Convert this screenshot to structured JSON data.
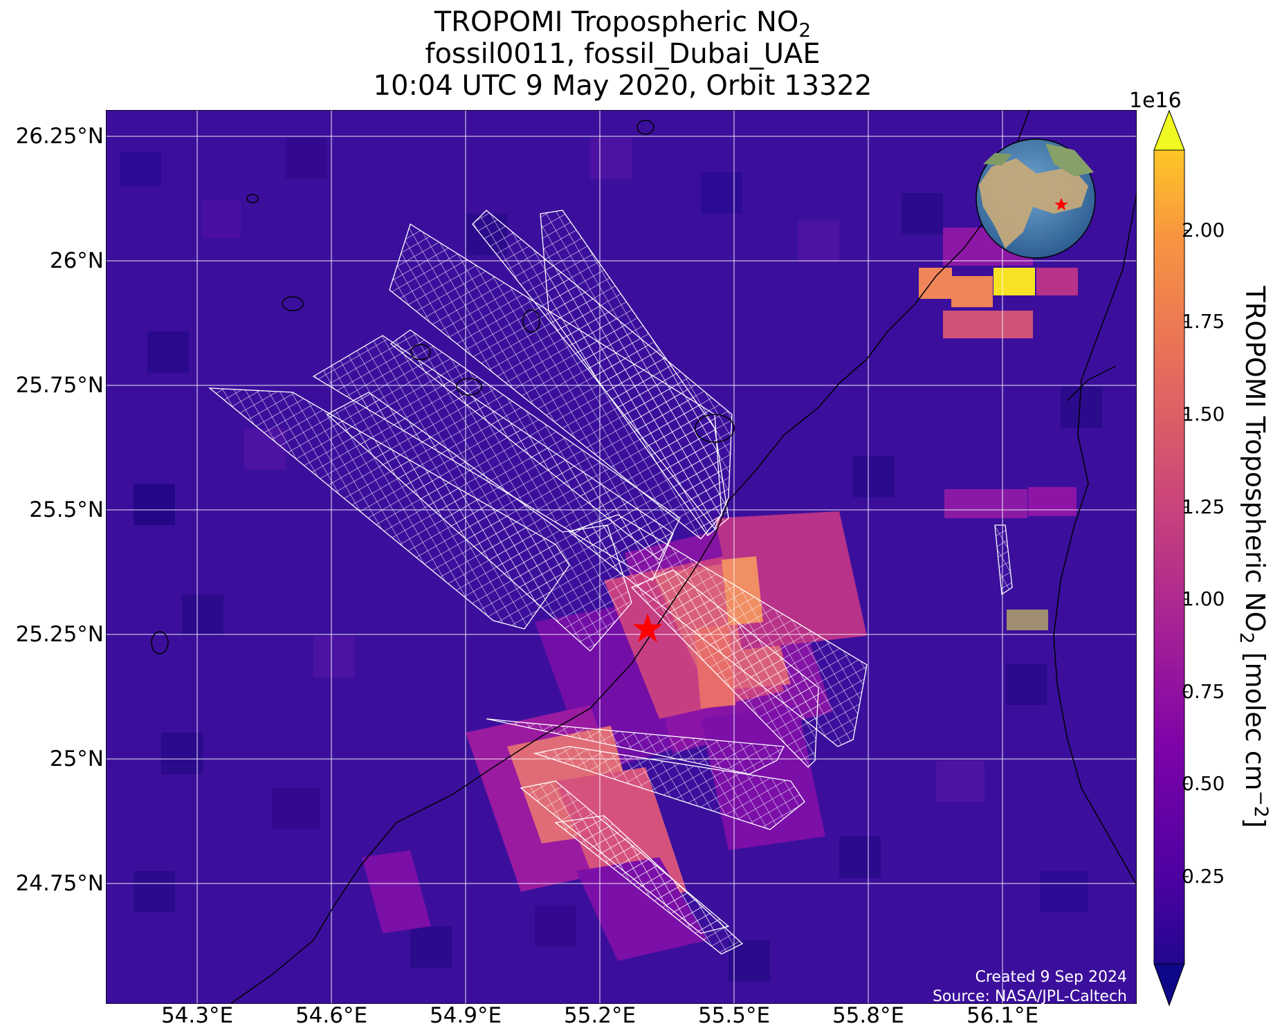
{
  "title": {
    "line1_main": "TROPOMI Tropospheric NO",
    "line1_sub": "2",
    "line2": "fossil0011, fossil_Dubai_UAE",
    "line3": "10:04 UTC 9 May 2020, Orbit 13322"
  },
  "axes": {
    "lat_labels": [
      "26.25°N",
      "26°N",
      "25.75°N",
      "25.5°N",
      "25.25°N",
      "25°N",
      "24.75°N"
    ],
    "lon_labels": [
      "54.3°E",
      "54.6°E",
      "54.9°E",
      "55.2°E",
      "55.5°E",
      "55.8°E",
      "56.1°E"
    ]
  },
  "colorbar": {
    "exponent": "1e16",
    "ticks": [
      "2.00",
      "1.75",
      "1.50",
      "1.25",
      "1.00",
      "0.75",
      "0.50",
      "0.25"
    ],
    "label_main": "TROPOMI Tropospheric NO",
    "label_sub": "2",
    "label_units": " [molec cm",
    "label_sup": "−2",
    "label_end": "]",
    "colormap": "plasma"
  },
  "credits": {
    "created": "Created 9 Sep 2024",
    "source": "Source: NASA/JPL-Caltech"
  },
  "colors": {
    "background_no2": "#3b0f9c",
    "gridlines": "#ffffff",
    "target_marker": "#ff0000",
    "coastline": "#000000"
  },
  "icons": {
    "target": "red-star",
    "inset": "globe-inset"
  }
}
